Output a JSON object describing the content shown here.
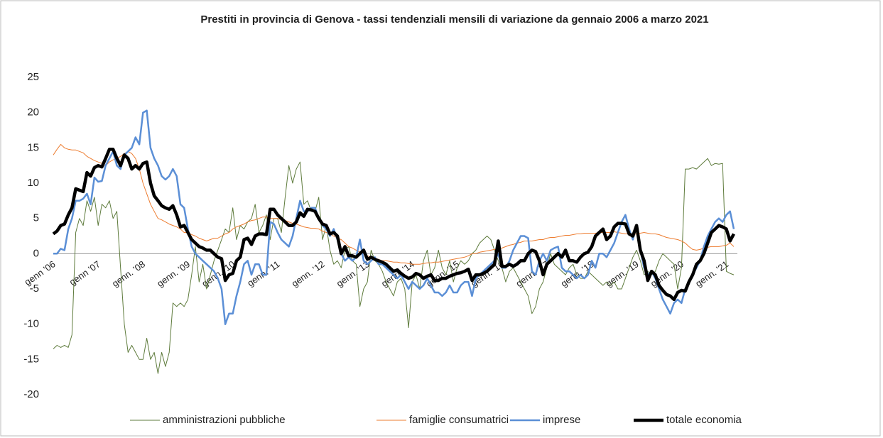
{
  "chart_data": {
    "type": "line",
    "title": "Prestiti in provincia di Genova - tassi tendenziali mensili di variazione da gennaio 2006 a marzo 2021",
    "categories": [
      "genn '06",
      null,
      null,
      null,
      null,
      null,
      null,
      null,
      null,
      null,
      null,
      null,
      "genn '07",
      null,
      null,
      null,
      null,
      null,
      null,
      null,
      null,
      null,
      null,
      null,
      "genn. '08",
      null,
      null,
      null,
      null,
      null,
      null,
      null,
      null,
      null,
      null,
      null,
      "genn. '09",
      null,
      null,
      null,
      null,
      null,
      null,
      null,
      null,
      null,
      null,
      null,
      "genn. '10",
      null,
      null,
      null,
      null,
      null,
      null,
      null,
      null,
      null,
      null,
      null,
      "genn. '11",
      null,
      null,
      null,
      null,
      null,
      null,
      null,
      null,
      null,
      null,
      null,
      "genn. '12",
      null,
      null,
      null,
      null,
      null,
      null,
      null,
      null,
      null,
      null,
      null,
      "genn. '13",
      null,
      null,
      null,
      null,
      null,
      null,
      null,
      null,
      null,
      null,
      null,
      "genn. '14",
      null,
      null,
      null,
      null,
      null,
      null,
      null,
      null,
      null,
      null,
      null,
      "genn. '15",
      null,
      null,
      null,
      null,
      null,
      null,
      null,
      null,
      null,
      null,
      null,
      "genn. '16",
      null,
      null,
      null,
      null,
      null,
      null,
      null,
      null,
      null,
      null,
      null,
      "genn. '17",
      null,
      null,
      null,
      null,
      null,
      null,
      null,
      null,
      null,
      null,
      null,
      "genn. '18",
      null,
      null,
      null,
      null,
      null,
      null,
      null,
      null,
      null,
      null,
      null,
      "genn. '19",
      null,
      null,
      null,
      null,
      null,
      null,
      null,
      null,
      null,
      null,
      null,
      "genn. '20",
      null,
      null,
      null,
      null,
      null,
      null,
      null,
      null,
      null,
      null,
      null,
      "genn. '21",
      null,
      null
    ],
    "series": [
      {
        "name": "amministrazioni pubbliche",
        "color": "#5e7b3c",
        "width": 1,
        "values": [
          -13.5,
          -13,
          -13.3,
          -13,
          -13.3,
          -11.5,
          3,
          5,
          4,
          7.5,
          6,
          8,
          4,
          7,
          6.5,
          7.5,
          5,
          6,
          -2,
          -10,
          -14,
          -13,
          -14,
          -15,
          -15,
          -12,
          -15,
          -14,
          -17,
          -14,
          -16,
          -14,
          -7,
          -7.5,
          -7,
          -7.5,
          -6.5,
          -3,
          1,
          -4,
          -1.5,
          -5,
          -3,
          -1,
          0.5,
          2,
          3.5,
          3,
          6.5,
          2,
          4,
          3.5,
          4.5,
          5,
          7,
          3,
          4,
          5.5,
          2,
          5,
          5,
          3,
          8,
          12.5,
          10,
          12,
          13,
          7,
          7.5,
          6,
          6,
          8,
          2,
          4,
          0.5,
          -1.5,
          -1,
          -2,
          0.5,
          1,
          -1,
          -1.5,
          -7.5,
          -5,
          -4,
          0.5,
          -1,
          -1.5,
          -2.5,
          -4,
          -5,
          -6,
          -4,
          -3.5,
          -5,
          -10.5,
          -4,
          -3,
          -5,
          -1,
          0.5,
          -3,
          -2,
          0.5,
          -2,
          -3,
          -1,
          -4,
          -2,
          -1,
          -1.5,
          -1,
          0,
          0.5,
          1.5,
          2,
          2.5,
          2,
          0.5,
          -1,
          -2,
          -4,
          -2.5,
          -2,
          -3,
          -4,
          -5,
          -6,
          -8.5,
          -7.5,
          -5,
          -4,
          -2,
          0,
          -1.5,
          -2,
          -2.5,
          -3,
          -2,
          -1.5,
          -3,
          -3.5,
          -3.5,
          -2.5,
          -3,
          -3.5,
          -4,
          -4.5,
          -4,
          -4.5,
          -4,
          -5,
          -5,
          -3.5,
          -2,
          -0.5,
          0.5,
          -1,
          -3,
          -2.5,
          -3,
          -2.5,
          -1,
          0,
          -0.5,
          -1,
          -1.5,
          -5,
          -2,
          12,
          12,
          12.2,
          12,
          12.5,
          13,
          13.5,
          12.5,
          12.8,
          12.7,
          12.8,
          -2.5,
          -2.8,
          -3
        ]
      },
      {
        "name": "famiglie consumatrici",
        "color": "#ed7d31",
        "width": 1,
        "values": [
          14,
          14.8,
          15.5,
          15,
          14.8,
          14.7,
          14.7,
          14.5,
          14.3,
          13.8,
          13.5,
          13.2,
          13,
          12.8,
          12.5,
          13,
          13.3,
          13.5,
          13.8,
          14.2,
          14.5,
          14.2,
          13.5,
          12,
          10,
          8.5,
          7,
          6,
          5,
          4.8,
          4.5,
          4.2,
          4,
          3.8,
          3.5,
          3,
          3,
          2.7,
          2.5,
          2.2,
          2,
          1.8,
          2,
          2.2,
          2.2,
          2.5,
          2.8,
          3,
          3.5,
          3.8,
          4,
          4.2,
          4.5,
          4.7,
          4.8,
          5,
          5.2,
          5.2,
          5,
          5,
          5,
          4.8,
          4.7,
          4.5,
          4.3,
          4.2,
          4,
          3.8,
          3.7,
          3.6,
          3.6,
          3.5,
          3.2,
          3,
          2.8,
          2.5,
          2.2,
          2,
          1.5,
          1,
          0.8,
          0.5,
          0.2,
          0,
          -0.3,
          -0.5,
          -0.7,
          -0.8,
          -1,
          -1,
          -1.1,
          -1.2,
          -1.2,
          -1.3,
          -1.3,
          -1.4,
          -1.5,
          -1.5,
          -1.5,
          -1.4,
          -1.3,
          -1.3,
          -1.2,
          -1.2,
          -1.1,
          -1,
          -0.9,
          -0.8,
          -0.7,
          -0.6,
          -0.5,
          -0.3,
          0,
          0,
          0.2,
          0.3,
          0.4,
          0.5,
          0.6,
          0.6,
          0.8,
          1,
          1.2,
          1.3,
          1.5,
          1.6,
          1.8,
          1.8,
          1.8,
          1.9,
          2,
          2,
          2.2,
          2.3,
          2.3,
          2.4,
          2.5,
          2.6,
          2.6,
          2.7,
          2.8,
          2.8,
          2.9,
          2.9,
          2.9,
          2.9,
          3,
          3,
          3,
          3,
          3.1,
          3,
          2.9,
          2.8,
          2.8,
          2.7,
          2.8,
          2.9,
          3,
          2.9,
          2.8,
          2.8,
          2.7,
          2.5,
          2.3,
          2.2,
          2.1,
          2,
          1.8,
          1.5,
          1,
          0.6,
          0.5,
          0.6,
          0.8,
          0.9,
          1,
          1,
          1,
          1.1,
          1.2,
          1.5,
          1
        ]
      },
      {
        "name": "imprese",
        "color": "#5b8fd6",
        "width": 2.5,
        "values": [
          0,
          0,
          0.7,
          0.5,
          3.5,
          5,
          7.5,
          7.5,
          7.8,
          8.5,
          7,
          10.8,
          10.2,
          10.3,
          12.5,
          13.5,
          14.5,
          12.5,
          12,
          14,
          14.5,
          15,
          16.5,
          15.5,
          20,
          20.3,
          15,
          13.5,
          12.5,
          11,
          10.5,
          11,
          12,
          11,
          7,
          6.5,
          3.5,
          1,
          0,
          -0.5,
          -1,
          -1.5,
          -2,
          -2.5,
          -3.5,
          -5,
          -10,
          -8.5,
          -8.5,
          -6,
          -4,
          -1.5,
          -1,
          -3,
          -1.5,
          -1.5,
          -3,
          -3,
          4.5,
          4.2,
          3,
          2,
          1.5,
          1,
          2.5,
          5,
          7.5,
          6,
          6,
          6.5,
          6.5,
          5,
          4,
          3.5,
          2.5,
          3.5,
          2,
          0,
          -1,
          -0.5,
          -1,
          -0.5,
          2,
          -1,
          -1.5,
          -1,
          -0.5,
          -1.5,
          -1.5,
          -2,
          -2.5,
          -3,
          -3.5,
          -3,
          -4,
          -5,
          -4,
          -4.5,
          -5,
          -4.5,
          -3.5,
          -4.5,
          -5.5,
          -5.5,
          -6,
          -5.5,
          -4.5,
          -5.5,
          -5.5,
          -4.5,
          -4,
          -4,
          -6,
          -3.5,
          -3,
          -2.5,
          -2,
          -1.5,
          -1,
          0,
          -2,
          -2,
          -1,
          0.5,
          1.5,
          2.5,
          2.5,
          2.2,
          -2.5,
          -3,
          -1,
          0,
          -1,
          0.5,
          0.8,
          1,
          -2,
          -2.5,
          -2.5,
          -3,
          -3.5,
          -3,
          -3.5,
          -3,
          -1,
          -2,
          0,
          0,
          -0.5,
          0.5,
          1.5,
          3,
          4.5,
          5.5,
          3.5,
          2,
          4,
          0.5,
          -2,
          -3,
          -2.5,
          -3.5,
          -5,
          -6.5,
          -7.5,
          -8.5,
          -7,
          -6.5,
          -7,
          -5,
          -4,
          -3,
          -2,
          -1,
          1,
          2.5,
          3.5,
          4.5,
          5,
          4.5,
          5.5,
          6,
          3.5
        ]
      },
      {
        "name": "totale economia",
        "color": "#000000",
        "width": 4.5,
        "values": [
          2.8,
          3.2,
          4,
          4.2,
          5.5,
          6.5,
          9.2,
          9,
          8.8,
          11.5,
          11,
          12.2,
          12.5,
          12.3,
          13.5,
          14.8,
          14.8,
          13.5,
          12.5,
          14,
          13.5,
          12,
          12.5,
          12,
          12.8,
          13,
          10,
          8.2,
          7.5,
          6.8,
          6.5,
          6.3,
          6.8,
          5.5,
          3.8,
          4,
          3,
          2,
          1.5,
          1,
          0.8,
          0.5,
          0.5,
          0,
          -0.5,
          -0.7,
          -3.8,
          -3,
          -2.8,
          -1,
          -0.5,
          2,
          2.2,
          1.3,
          2.5,
          2.8,
          2.8,
          2.7,
          6.3,
          6.3,
          5.5,
          5,
          4.5,
          4,
          4,
          4.5,
          5.8,
          5.3,
          6.3,
          6.2,
          6,
          5,
          4.2,
          4,
          2.8,
          3,
          2.5,
          0,
          1,
          -0.3,
          -0.3,
          -0.5,
          0,
          0.5,
          -0.8,
          -0.5,
          -0.8,
          -1,
          -1.2,
          -1.5,
          -2,
          -2.5,
          -2.3,
          -2.8,
          -3.2,
          -3.5,
          -3.3,
          -2.8,
          -3,
          -3.5,
          -3.2,
          -3,
          -3.8,
          -3.8,
          -3.5,
          -3.5,
          -3.2,
          -3,
          -2.8,
          -2.7,
          -2.5,
          -2.2,
          -3.8,
          -3,
          -3,
          -2.8,
          -2.5,
          -2,
          -1.5,
          1.8,
          -1.8,
          -1.8,
          -1.5,
          -1.8,
          -1.5,
          -1,
          -1,
          0,
          0.5,
          0.3,
          -1,
          -3,
          -1.5,
          -1,
          -0.5,
          0,
          -0.5,
          0.5,
          -1,
          -1,
          -1.2,
          -0.5,
          0,
          0.2,
          1,
          2.5,
          3,
          3.5,
          2,
          2.5,
          3.8,
          4.3,
          4.3,
          4.2,
          2.8,
          2.5,
          4,
          0.5,
          -1,
          -3.8,
          -2.5,
          -3,
          -4.5,
          -5.2,
          -5.8,
          -6,
          -6.5,
          -5.5,
          -5.2,
          -5.3,
          -4,
          -3,
          -1.5,
          -1,
          0,
          1.5,
          3,
          3.5,
          4,
          3.8,
          3.5,
          1.8,
          2.8
        ]
      }
    ],
    "ylim": [
      -20,
      25
    ],
    "yticks": [
      -20,
      -15,
      -10,
      -5,
      0,
      5,
      10,
      15,
      20,
      25
    ],
    "grid": false,
    "legend": "bottom"
  }
}
